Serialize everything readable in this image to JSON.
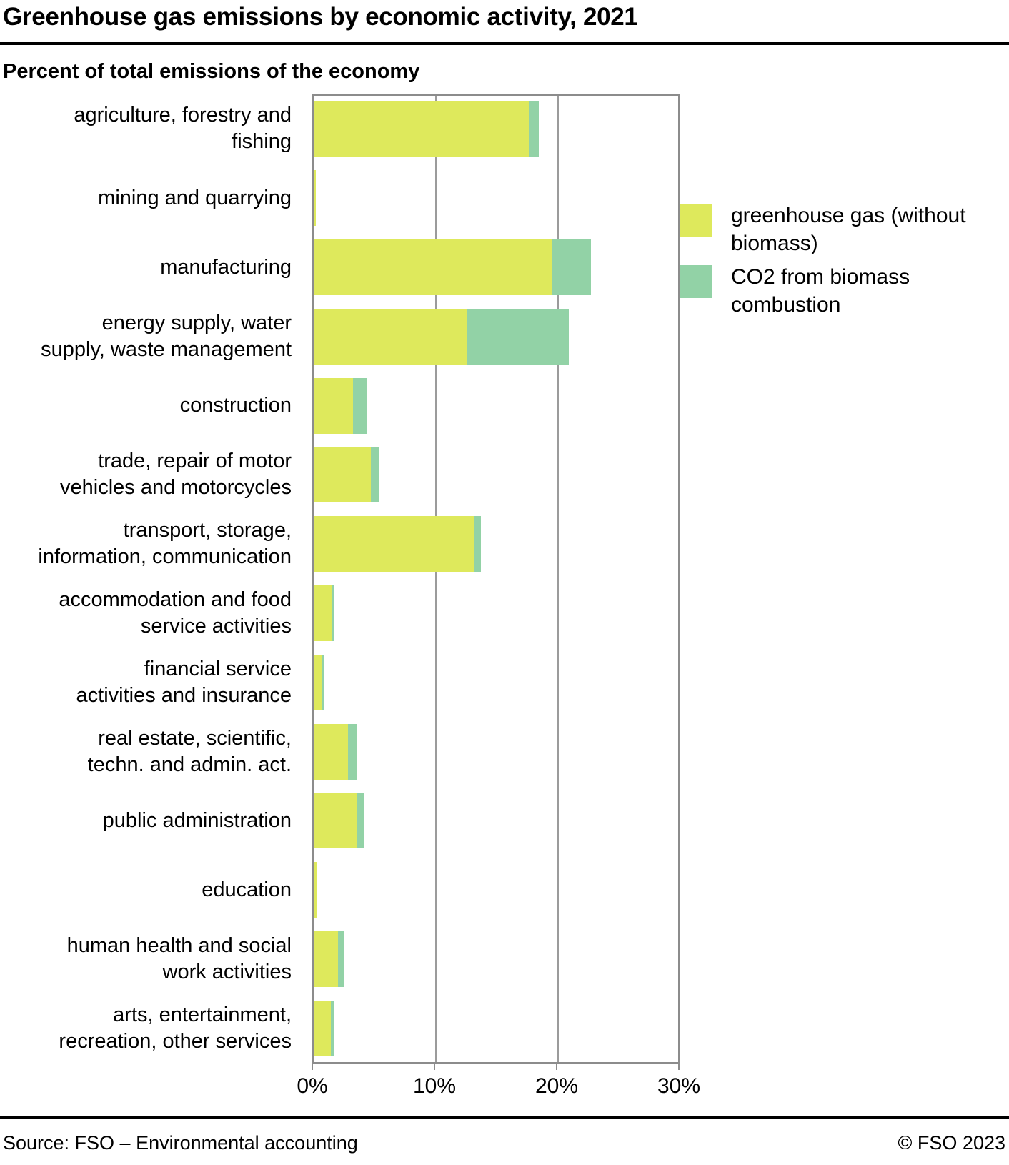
{
  "header": {
    "title": "Greenhouse gas emissions by economic activity, 2021",
    "subtitle": "Percent of total emissions of the economy"
  },
  "colors": {
    "greenhouse_gas": "#dee95c",
    "co2_biomass": "#92d2a6",
    "grid": "#9b9b9b",
    "plot_border": "#8c8c8c",
    "rule": "#000000"
  },
  "legend": [
    {
      "lines": [
        "greenhouse gas (without",
        "biomass)"
      ],
      "color": "#dee95c"
    },
    {
      "lines": [
        "CO2 from biomass",
        "combustion"
      ],
      "color": "#92d2a6"
    }
  ],
  "chart_data": {
    "type": "bar",
    "orientation": "horizontal",
    "title": "Greenhouse gas emissions by economic activity, 2021",
    "xlabel": "Percent of total emissions of the economy",
    "ylabel": "",
    "xlim": [
      0,
      30
    ],
    "tick_values": [
      0,
      10,
      20,
      30
    ],
    "xlabel_ticks": [
      "0%",
      "10%",
      "20%",
      "30%"
    ],
    "grid": true,
    "legend_position": "right",
    "categories": [
      [
        "agriculture, forestry and",
        "fishing"
      ],
      [
        "mining and quarrying"
      ],
      [
        "manufacturing"
      ],
      [
        "energy supply, water",
        "supply, waste management"
      ],
      [
        "construction"
      ],
      [
        "trade, repair of motor",
        "vehicles and motorcycles"
      ],
      [
        "transport, storage,",
        "information, communication"
      ],
      [
        "accommodation and food",
        "service activities"
      ],
      [
        "financial service",
        "activities and insurance"
      ],
      [
        "real estate, scientific,",
        "techn. and admin. act."
      ],
      [
        "public administration"
      ],
      [
        "education"
      ],
      [
        "human health and social",
        "work activities"
      ],
      [
        "arts, entertainment,",
        "recreation, other services"
      ]
    ],
    "series": [
      {
        "name": "greenhouse gas (without biomass)",
        "color": "#dee95c",
        "values": [
          17.6,
          0.2,
          19.5,
          12.5,
          3.2,
          4.7,
          13.1,
          1.5,
          0.7,
          2.8,
          3.5,
          0.25,
          2.0,
          1.4
        ]
      },
      {
        "name": "CO2 from biomass combustion",
        "color": "#92d2a6",
        "values": [
          0.8,
          0.0,
          3.2,
          8.4,
          1.1,
          0.6,
          0.6,
          0.2,
          0.2,
          0.7,
          0.6,
          0.0,
          0.5,
          0.25
        ]
      }
    ]
  },
  "footer": {
    "source": "Source: FSO – Environmental accounting",
    "copyright": "© FSO 2023"
  }
}
